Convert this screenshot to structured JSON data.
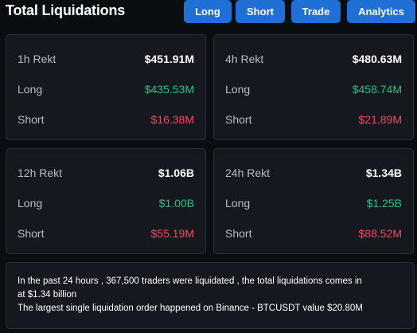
{
  "header": {
    "title": "Total Liquidations",
    "buttons": {
      "long": "Long",
      "short": "Short",
      "trade": "Trade",
      "analytics": "Analytics"
    }
  },
  "cards": {
    "h1": {
      "period": "1h Rekt",
      "total": "$451.91M",
      "long_label": "Long",
      "long": "$435.53M",
      "short_label": "Short",
      "short": "$16.38M"
    },
    "h4": {
      "period": "4h Rekt",
      "total": "$480.63M",
      "long_label": "Long",
      "long": "$458.74M",
      "short_label": "Short",
      "short": "$21.89M"
    },
    "h12": {
      "period": "12h Rekt",
      "total": "$1.06B",
      "long_label": "Long",
      "long": "$1.00B",
      "short_label": "Short",
      "short": "$55.19M"
    },
    "h24": {
      "period": "24h Rekt",
      "total": "$1.34B",
      "long_label": "Long",
      "long": "$1.25B",
      "short_label": "Short",
      "short": "$88.52M"
    }
  },
  "summary": {
    "line1": "In the past 24 hours , 367,500 traders were liquidated , the total liquidations comes in",
    "line2": "at $1.34 billion",
    "line3": "The largest single liquidation order happened on Binance - BTCUSDT value $20.80M"
  },
  "colors": {
    "background": "#0b0e11",
    "card": "#15191f",
    "button": "#1f6fd6",
    "long": "#2ebd85",
    "short": "#f6465d"
  }
}
